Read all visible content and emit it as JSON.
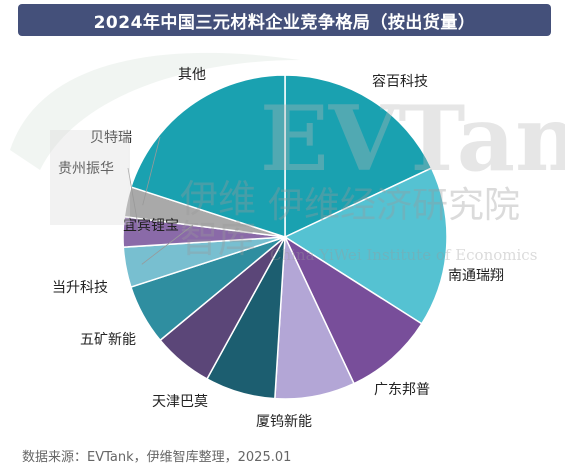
{
  "chart_data": {
    "type": "pie",
    "title": "2024年中国三元材料企业竞争格局（按出货量）",
    "categories": [
      "容百科技",
      "南通瑞翔",
      "广东邦普",
      "厦钨新能",
      "天津巴莫",
      "五矿新能",
      "当升科技",
      "宜宾锂宝",
      "贵州振华",
      "贝特瑞",
      "其他"
    ],
    "values": [
      18,
      16,
      9,
      8,
      7,
      6,
      6,
      4,
      3,
      3,
      20
    ],
    "unit": "",
    "colors": [
      "#1aa1b0",
      "#55c2d2",
      "#784e9a",
      "#b3a6d6",
      "#1c5e70",
      "#5b4678",
      "#2f8ea0",
      "#78bfd0",
      "#8a6aa8",
      "#a9a9a9",
      "#1aa1b0"
    ]
  },
  "source": "数据来源：EVTank，伊维智库整理，2025.01",
  "watermark": {
    "logo": "EVTank",
    "cn_line1": "伊维",
    "cn_line2": "智库",
    "institute": "伊维经济研究院",
    "institute_en": "China YiWei Institute of Economics"
  }
}
